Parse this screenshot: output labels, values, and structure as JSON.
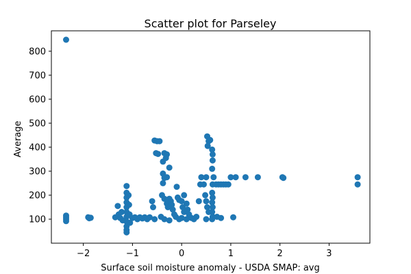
{
  "chart_data": {
    "type": "scatter",
    "title": "Scatter plot for Parseley",
    "xlabel": "Surface soil moisture anomaly  - USDA SMAP: avg",
    "ylabel": "Average",
    "xlim": [
      -2.65,
      3.83
    ],
    "ylim": [
      0,
      885
    ],
    "x_ticks": [
      -2,
      -1,
      0,
      1,
      2,
      3
    ],
    "x_tick_labels": [
      "−2",
      "−1",
      "0",
      "1",
      "2",
      "3"
    ],
    "y_ticks": [
      100,
      200,
      300,
      400,
      500,
      600,
      700,
      800
    ],
    "y_tick_labels": [
      "100",
      "200",
      "300",
      "400",
      "500",
      "600",
      "700",
      "800"
    ],
    "grid": false,
    "marker_color": "#1f77b4",
    "series": [
      {
        "points": [
          [
            -2.35,
            848
          ],
          [
            -2.35,
            115
          ],
          [
            -2.35,
            108
          ],
          [
            -2.35,
            100
          ],
          [
            -2.35,
            92
          ],
          [
            -1.9,
            108
          ],
          [
            -1.88,
            104
          ],
          [
            -1.85,
            106
          ],
          [
            -1.35,
            108
          ],
          [
            -1.3,
            155
          ],
          [
            -1.28,
            120
          ],
          [
            -1.25,
            105
          ],
          [
            -1.22,
            130
          ],
          [
            -1.2,
            95
          ],
          [
            -1.12,
            238
          ],
          [
            -1.12,
            210
          ],
          [
            -1.12,
            190
          ],
          [
            -1.12,
            170
          ],
          [
            -1.12,
            150
          ],
          [
            -1.12,
            130
          ],
          [
            -1.12,
            110
          ],
          [
            -1.12,
            90
          ],
          [
            -1.12,
            70
          ],
          [
            -1.12,
            55
          ],
          [
            -1.12,
            45
          ],
          [
            -1.08,
            200
          ],
          [
            -1.07,
            160
          ],
          [
            -1.06,
            120
          ],
          [
            -1.05,
            85
          ],
          [
            -1.0,
            105
          ],
          [
            -0.95,
            108
          ],
          [
            -0.9,
            100
          ],
          [
            -0.85,
            108
          ],
          [
            -0.8,
            103
          ],
          [
            -0.75,
            108
          ],
          [
            -0.7,
            100
          ],
          [
            -0.65,
            108
          ],
          [
            -0.6,
            175
          ],
          [
            -0.58,
            150
          ],
          [
            -0.55,
            100
          ],
          [
            -0.55,
            428
          ],
          [
            -0.5,
            425
          ],
          [
            -0.45,
            425
          ],
          [
            -0.52,
            375
          ],
          [
            -0.48,
            372
          ],
          [
            -0.4,
            200
          ],
          [
            -0.42,
            110
          ],
          [
            -0.38,
            340
          ],
          [
            -0.35,
            375
          ],
          [
            -0.3,
            370
          ],
          [
            -0.32,
            355
          ],
          [
            -0.25,
            315
          ],
          [
            -0.38,
            290
          ],
          [
            -0.35,
            272
          ],
          [
            -0.3,
            275
          ],
          [
            -0.38,
            250
          ],
          [
            -0.35,
            185
          ],
          [
            -0.3,
            165
          ],
          [
            -0.28,
            150
          ],
          [
            -0.25,
            185
          ],
          [
            -0.22,
            175
          ],
          [
            -0.2,
            160
          ],
          [
            -0.18,
            140
          ],
          [
            -0.15,
            120
          ],
          [
            -0.12,
            110
          ],
          [
            -0.35,
            100
          ],
          [
            -0.25,
            95
          ],
          [
            -0.1,
            235
          ],
          [
            -0.08,
            190
          ],
          [
            -0.05,
            180
          ],
          [
            0.0,
            175
          ],
          [
            0.02,
            150
          ],
          [
            0.05,
            200
          ],
          [
            0.05,
            130
          ],
          [
            0.1,
            165
          ],
          [
            0.12,
            140
          ],
          [
            0.15,
            120
          ],
          [
            -0.05,
            100
          ],
          [
            0.0,
            105
          ],
          [
            0.1,
            100
          ],
          [
            0.2,
            105
          ],
          [
            0.25,
            100
          ],
          [
            0.3,
            110
          ],
          [
            0.35,
            175
          ],
          [
            0.38,
            245
          ],
          [
            0.4,
            275
          ],
          [
            0.45,
            245
          ],
          [
            0.48,
            200
          ],
          [
            0.5,
            275
          ],
          [
            0.5,
            175
          ],
          [
            0.52,
            150
          ],
          [
            0.55,
            130
          ],
          [
            0.52,
            445
          ],
          [
            0.55,
            425
          ],
          [
            0.53,
            405
          ],
          [
            0.58,
            430
          ],
          [
            0.5,
            100
          ],
          [
            0.62,
            390
          ],
          [
            0.63,
            370
          ],
          [
            0.63,
            345
          ],
          [
            0.62,
            310
          ],
          [
            0.65,
            275
          ],
          [
            0.63,
            245
          ],
          [
            0.62,
            210
          ],
          [
            0.63,
            190
          ],
          [
            0.62,
            170
          ],
          [
            0.63,
            150
          ],
          [
            0.62,
            130
          ],
          [
            0.63,
            110
          ],
          [
            0.62,
            100
          ],
          [
            0.7,
            245
          ],
          [
            0.75,
            245
          ],
          [
            0.8,
            245
          ],
          [
            0.85,
            245
          ],
          [
            0.9,
            245
          ],
          [
            0.95,
            245
          ],
          [
            0.72,
            110
          ],
          [
            0.8,
            105
          ],
          [
            1.0,
            275
          ],
          [
            1.05,
            108
          ],
          [
            1.1,
            275
          ],
          [
            1.3,
            275
          ],
          [
            1.55,
            275
          ],
          [
            2.05,
            275
          ],
          [
            2.07,
            272
          ],
          [
            3.58,
            275
          ],
          [
            3.58,
            245
          ]
        ]
      }
    ]
  }
}
